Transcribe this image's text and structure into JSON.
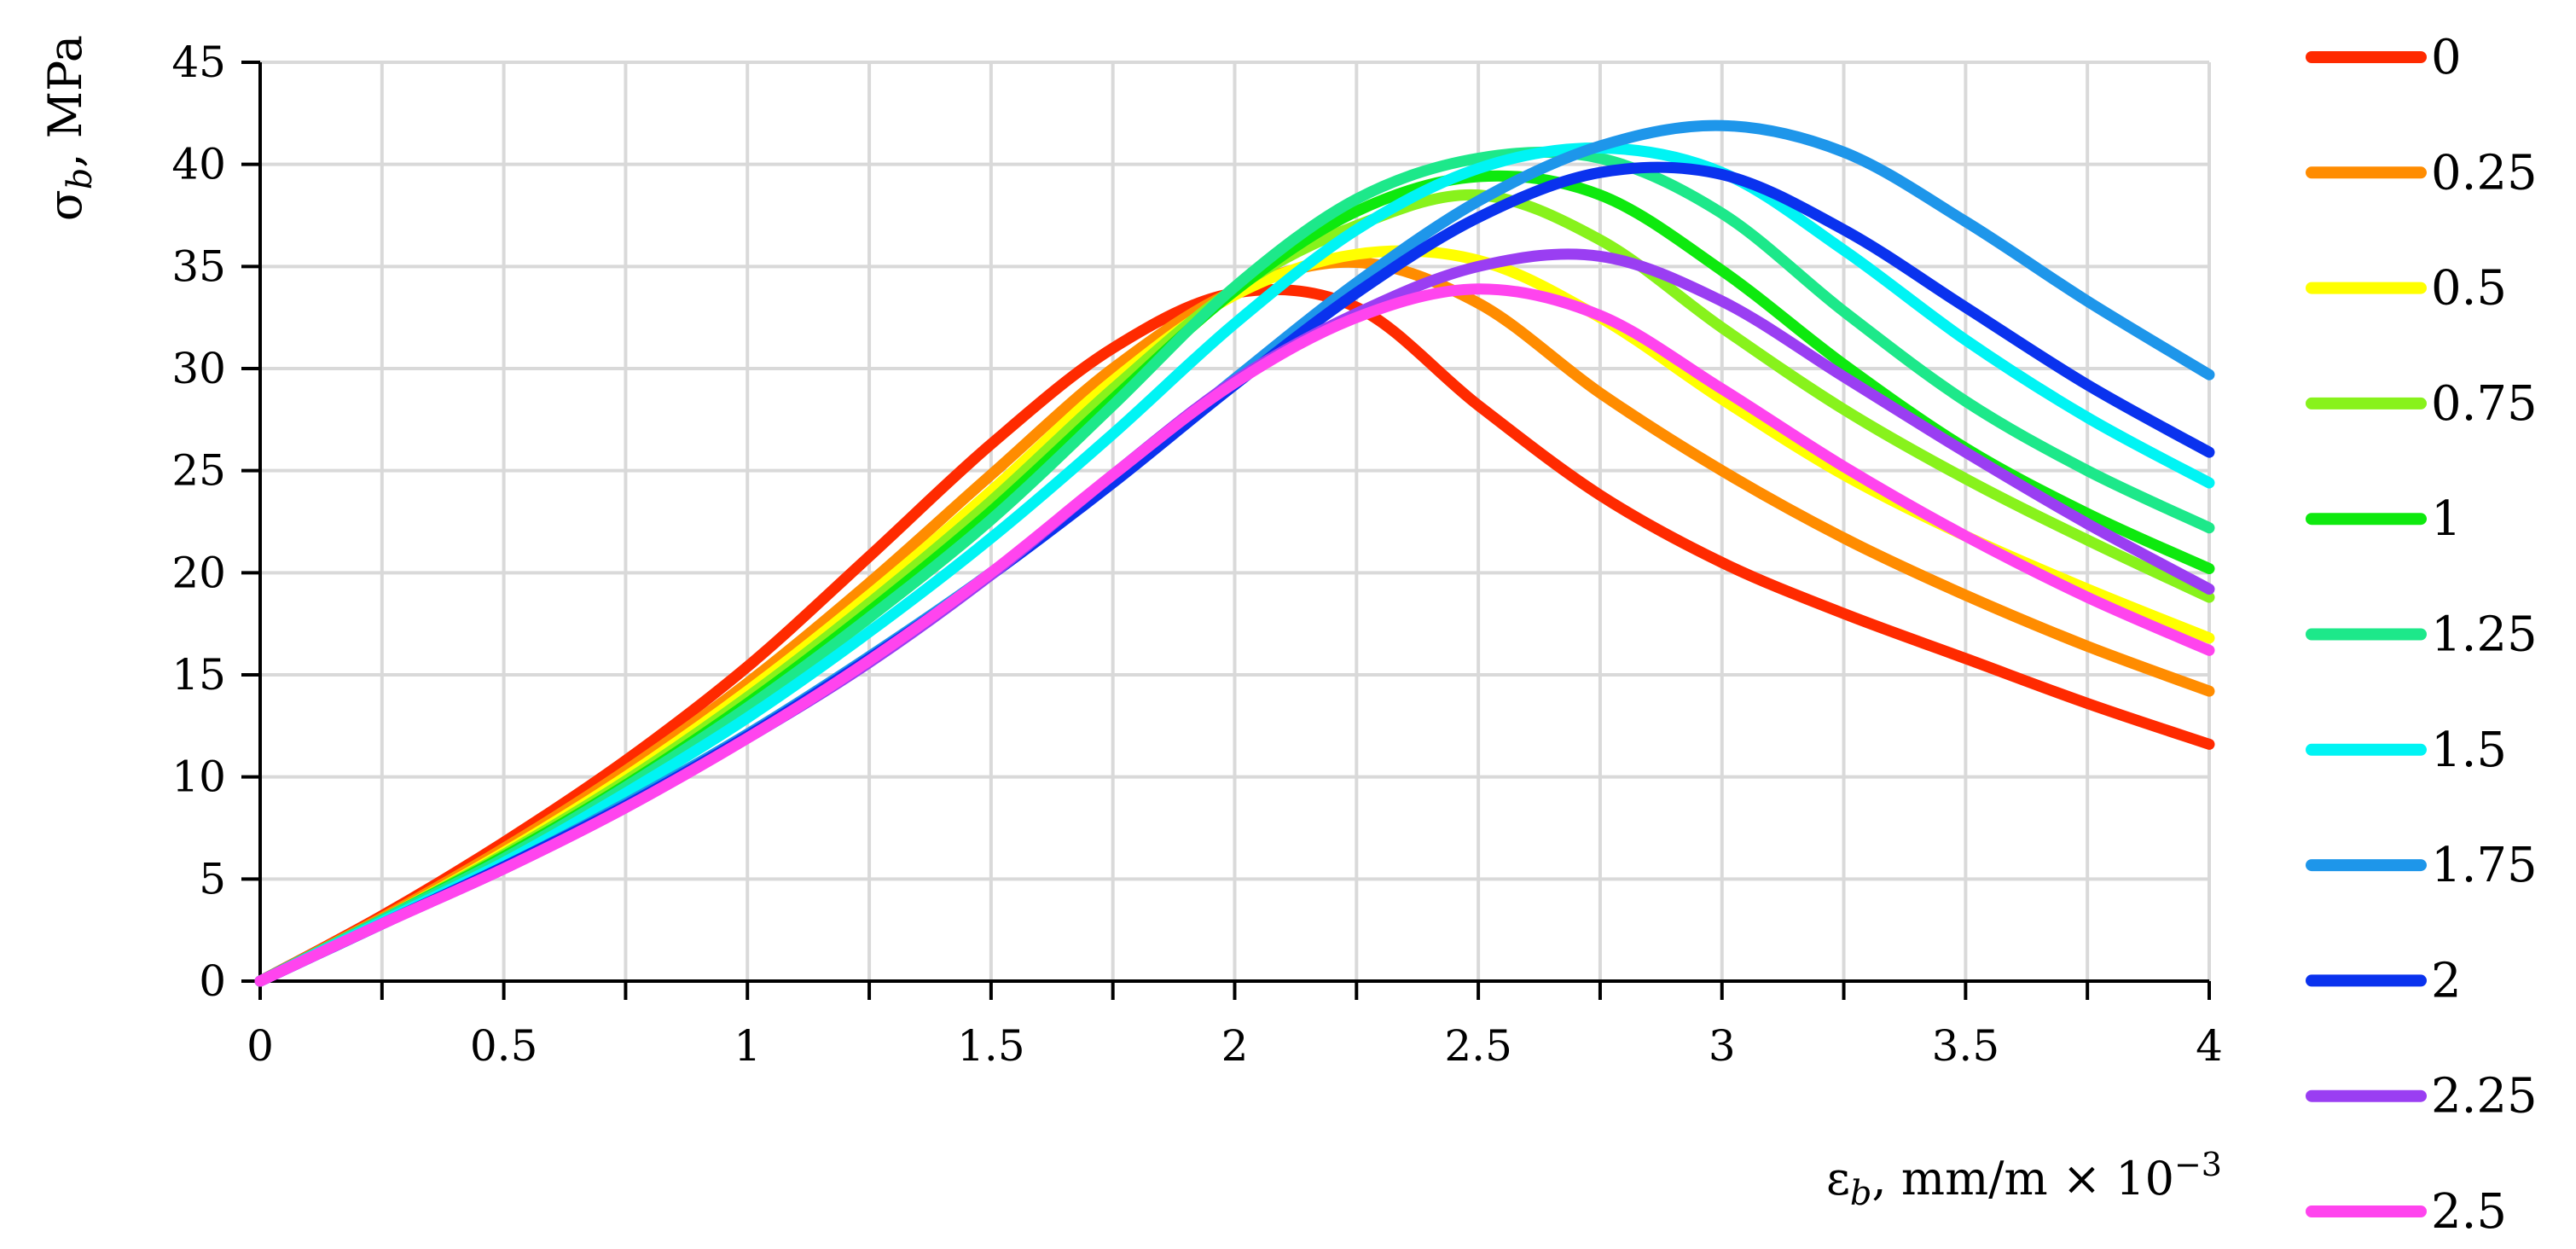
{
  "chart_data": {
    "type": "line",
    "title": "",
    "xlabel": {
      "prefix": "ε",
      "sub": "b",
      "suffix": ", mm/m × 10",
      "sup": "−3"
    },
    "ylabel": {
      "prefix": "σ",
      "sub": "b",
      "suffix": ", MPa"
    },
    "xlim": [
      0,
      4
    ],
    "ylim": [
      0,
      45
    ],
    "x_ticks": [
      0,
      0.5,
      1,
      1.5,
      2,
      2.5,
      3,
      3.5,
      4
    ],
    "x_tick_labels": [
      "0",
      "0.5",
      "1",
      "1.5",
      "2",
      "2.5",
      "3",
      "3.5",
      "4"
    ],
    "x_minor_step": 0.25,
    "y_ticks": [
      0,
      5,
      10,
      15,
      20,
      25,
      30,
      35,
      40,
      45
    ],
    "y_tick_labels": [
      "0",
      "5",
      "10",
      "15",
      "20",
      "25",
      "30",
      "35",
      "40",
      "45"
    ],
    "grid": true,
    "legend_position": "right",
    "series": [
      {
        "name": "0",
        "color": "#ff2a00",
        "points": [
          [
            0,
            0
          ],
          [
            0.25,
            3.2
          ],
          [
            0.5,
            6.8
          ],
          [
            0.75,
            10.8
          ],
          [
            1,
            15.4
          ],
          [
            1.25,
            20.8
          ],
          [
            1.5,
            26.3
          ],
          [
            1.75,
            31
          ],
          [
            2,
            33.7
          ],
          [
            2.25,
            33
          ],
          [
            2.5,
            28.2
          ],
          [
            2.75,
            23.8
          ],
          [
            3,
            20.5
          ],
          [
            3.25,
            18
          ],
          [
            3.5,
            15.8
          ],
          [
            3.75,
            13.6
          ],
          [
            4,
            11.6
          ]
        ]
      },
      {
        "name": "0.25",
        "color": "#ff8c00",
        "points": [
          [
            0,
            0
          ],
          [
            0.25,
            3.1
          ],
          [
            0.5,
            6.5
          ],
          [
            0.75,
            10.3
          ],
          [
            1,
            14.6
          ],
          [
            1.25,
            19.5
          ],
          [
            1.5,
            24.8
          ],
          [
            1.75,
            30
          ],
          [
            2,
            33.8
          ],
          [
            2.25,
            35.2
          ],
          [
            2.5,
            33.2
          ],
          [
            2.75,
            28.8
          ],
          [
            3,
            25
          ],
          [
            3.25,
            21.7
          ],
          [
            3.5,
            18.9
          ],
          [
            3.75,
            16.4
          ],
          [
            4,
            14.2
          ]
        ]
      },
      {
        "name": "0.5",
        "color": "#ffff00",
        "points": [
          [
            0,
            0
          ],
          [
            0.25,
            3
          ],
          [
            0.5,
            6.3
          ],
          [
            0.75,
            10
          ],
          [
            1,
            14.2
          ],
          [
            1.25,
            18.9
          ],
          [
            1.5,
            24
          ],
          [
            1.75,
            29.4
          ],
          [
            2,
            33.6
          ],
          [
            2.25,
            35.6
          ],
          [
            2.5,
            35.3
          ],
          [
            2.75,
            32.5
          ],
          [
            3,
            28.5
          ],
          [
            3.25,
            24.8
          ],
          [
            3.5,
            21.8
          ],
          [
            3.75,
            19.2
          ],
          [
            4,
            16.8
          ]
        ]
      },
      {
        "name": "0.75",
        "color": "#88f21c",
        "points": [
          [
            0,
            0
          ],
          [
            0.25,
            3
          ],
          [
            0.5,
            6.2
          ],
          [
            0.75,
            9.8
          ],
          [
            1,
            13.9
          ],
          [
            1.25,
            18.5
          ],
          [
            1.5,
            23.5
          ],
          [
            1.75,
            29
          ],
          [
            2,
            33.9
          ],
          [
            2.25,
            37
          ],
          [
            2.5,
            38.5
          ],
          [
            2.75,
            36.3
          ],
          [
            3,
            32
          ],
          [
            3.25,
            28
          ],
          [
            3.5,
            24.6
          ],
          [
            3.75,
            21.6
          ],
          [
            4,
            18.8
          ]
        ]
      },
      {
        "name": "1",
        "color": "#0ee90e",
        "points": [
          [
            0,
            0
          ],
          [
            0.25,
            3
          ],
          [
            0.5,
            6.1
          ],
          [
            0.75,
            9.6
          ],
          [
            1,
            13.6
          ],
          [
            1.25,
            18.1
          ],
          [
            1.5,
            23
          ],
          [
            1.75,
            28.5
          ],
          [
            2,
            33.8
          ],
          [
            2.25,
            37.7
          ],
          [
            2.5,
            39.4
          ],
          [
            2.75,
            38.5
          ],
          [
            3,
            34.8
          ],
          [
            3.25,
            30.2
          ],
          [
            3.5,
            26.1
          ],
          [
            3.75,
            22.9
          ],
          [
            4,
            20.2
          ]
        ]
      },
      {
        "name": "1.25",
        "color": "#1de88a",
        "points": [
          [
            0,
            0
          ],
          [
            0.25,
            3
          ],
          [
            0.5,
            6
          ],
          [
            0.75,
            9.5
          ],
          [
            1,
            13.4
          ],
          [
            1.25,
            17.8
          ],
          [
            1.5,
            22.6
          ],
          [
            1.75,
            28.2
          ],
          [
            2,
            34
          ],
          [
            2.25,
            38.3
          ],
          [
            2.5,
            40.3
          ],
          [
            2.75,
            40.3
          ],
          [
            3,
            37.6
          ],
          [
            3.25,
            32.8
          ],
          [
            3.5,
            28.4
          ],
          [
            3.75,
            25
          ],
          [
            4,
            22.2
          ]
        ]
      },
      {
        "name": "1.5",
        "color": "#00f4f4",
        "points": [
          [
            0,
            0
          ],
          [
            0.25,
            2.9
          ],
          [
            0.5,
            5.8
          ],
          [
            0.75,
            9.2
          ],
          [
            1,
            12.9
          ],
          [
            1.25,
            17.1
          ],
          [
            1.5,
            21.7
          ],
          [
            1.75,
            26.8
          ],
          [
            2,
            32.2
          ],
          [
            2.25,
            36.8
          ],
          [
            2.5,
            39.8
          ],
          [
            2.75,
            40.8
          ],
          [
            3,
            39.6
          ],
          [
            3.25,
            35.8
          ],
          [
            3.5,
            31.4
          ],
          [
            3.75,
            27.6
          ],
          [
            4,
            24.4
          ]
        ]
      },
      {
        "name": "1.75",
        "color": "#1e96ea",
        "points": [
          [
            0,
            0
          ],
          [
            0.25,
            2.8
          ],
          [
            0.5,
            5.6
          ],
          [
            0.75,
            8.7
          ],
          [
            1,
            12.1
          ],
          [
            1.25,
            15.9
          ],
          [
            1.5,
            20
          ],
          [
            1.75,
            24.6
          ],
          [
            2,
            29.5
          ],
          [
            2.25,
            34.2
          ],
          [
            2.5,
            38.2
          ],
          [
            2.75,
            40.9
          ],
          [
            3,
            41.9
          ],
          [
            3.25,
            40.6
          ],
          [
            3.5,
            37.2
          ],
          [
            3.75,
            33.3
          ],
          [
            4,
            29.7
          ]
        ]
      },
      {
        "name": "2",
        "color": "#0a32ee",
        "points": [
          [
            0,
            0
          ],
          [
            0.25,
            2.8
          ],
          [
            0.5,
            5.6
          ],
          [
            0.75,
            8.6
          ],
          [
            1,
            12
          ],
          [
            1.25,
            15.8
          ],
          [
            1.5,
            19.9
          ],
          [
            1.75,
            24.4
          ],
          [
            2,
            29.2
          ],
          [
            2.25,
            33.7
          ],
          [
            2.5,
            37.4
          ],
          [
            2.75,
            39.6
          ],
          [
            3,
            39.5
          ],
          [
            3.25,
            36.8
          ],
          [
            3.5,
            33
          ],
          [
            3.75,
            29.2
          ],
          [
            4,
            25.9
          ]
        ]
      },
      {
        "name": "2.25",
        "color": "#9a3ef2",
        "points": [
          [
            0,
            0
          ],
          [
            0.25,
            2.8
          ],
          [
            0.5,
            5.5
          ],
          [
            0.75,
            8.5
          ],
          [
            1,
            11.9
          ],
          [
            1.25,
            15.6
          ],
          [
            1.5,
            19.9
          ],
          [
            1.75,
            24.8
          ],
          [
            2,
            29.4
          ],
          [
            2.25,
            32.7
          ],
          [
            2.5,
            35
          ],
          [
            2.75,
            35.5
          ],
          [
            3,
            33.3
          ],
          [
            3.25,
            29.6
          ],
          [
            3.5,
            25.9
          ],
          [
            3.75,
            22.4
          ],
          [
            4,
            19.2
          ]
        ]
      },
      {
        "name": "2.5",
        "color": "#ff44ee",
        "points": [
          [
            0,
            0
          ],
          [
            0.25,
            2.8
          ],
          [
            0.5,
            5.5
          ],
          [
            0.75,
            8.5
          ],
          [
            1,
            11.9
          ],
          [
            1.25,
            15.7
          ],
          [
            1.5,
            20
          ],
          [
            1.75,
            24.8
          ],
          [
            2,
            29.3
          ],
          [
            2.25,
            32.5
          ],
          [
            2.5,
            33.9
          ],
          [
            2.75,
            32.6
          ],
          [
            3,
            29
          ],
          [
            3.25,
            25.2
          ],
          [
            3.5,
            21.8
          ],
          [
            3.75,
            18.8
          ],
          [
            4,
            16.2
          ]
        ]
      }
    ]
  }
}
